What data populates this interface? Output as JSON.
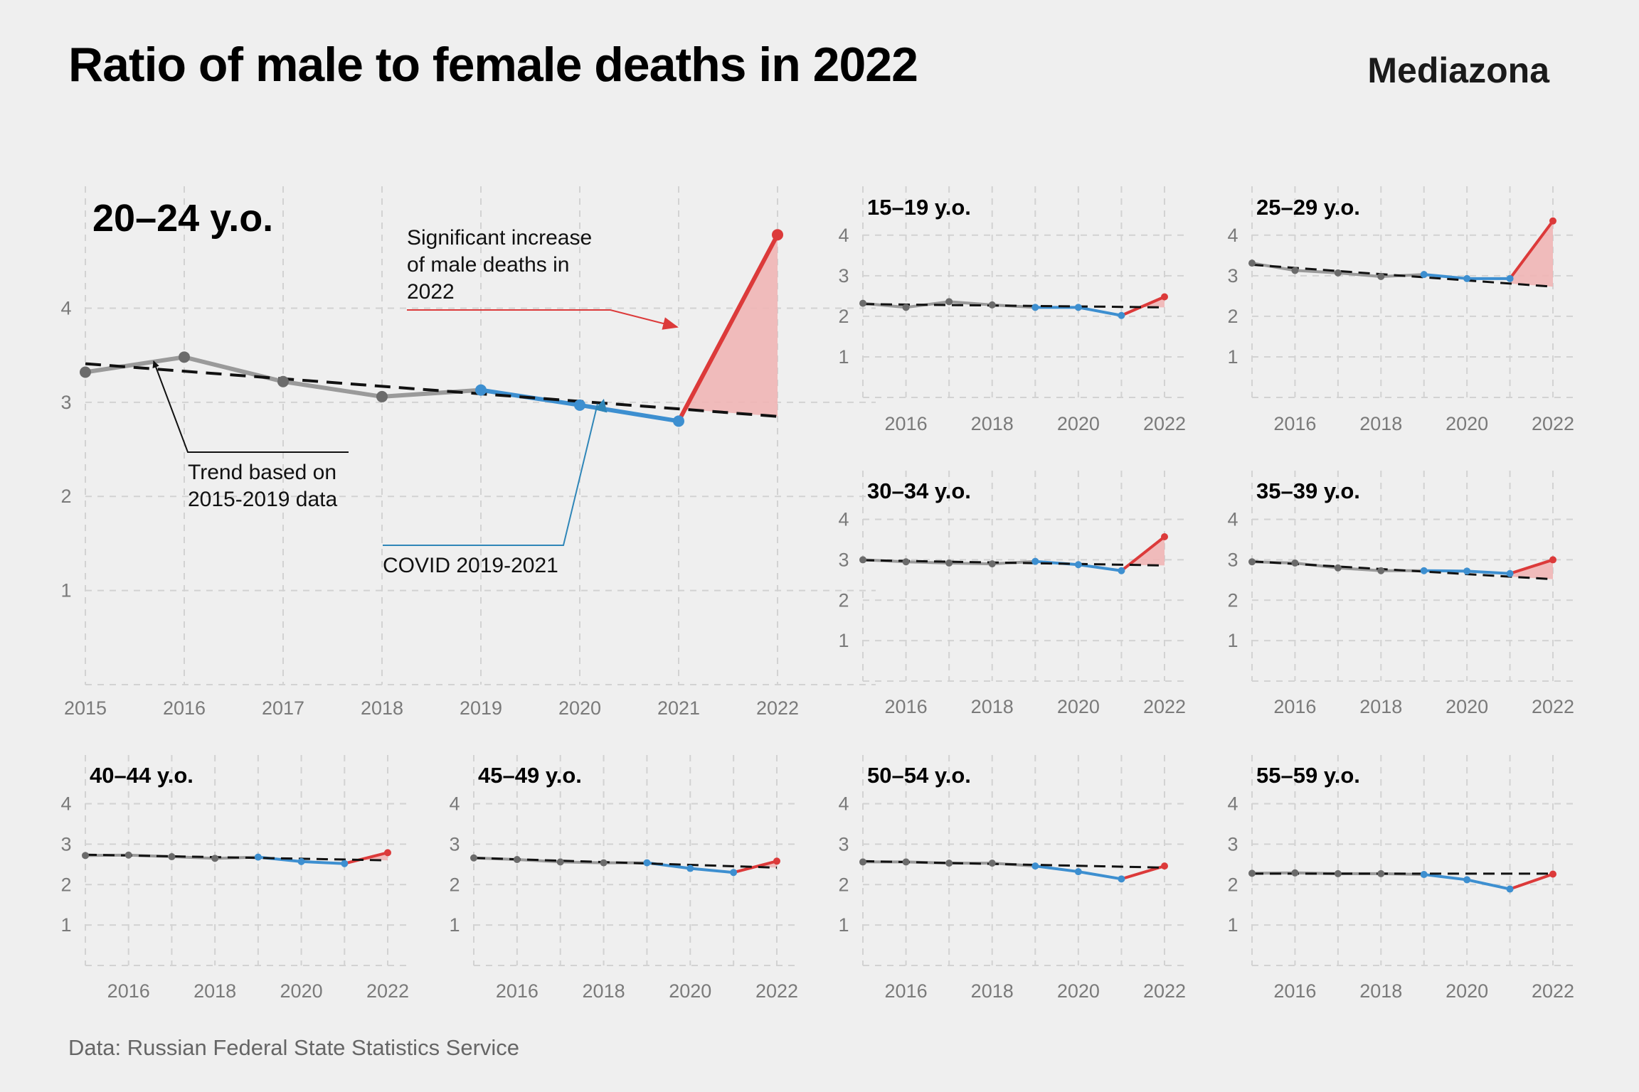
{
  "header": {
    "title": "Ratio of male to female deaths in 2022",
    "brand": "Mediazona"
  },
  "footer": {
    "source": "Data: Russian Federal State Statistics Service"
  },
  "colors": {
    "pre_covid": "#9a9a9a",
    "pre_covid_points": "#6b6b6b",
    "covid": "#3d8fd0",
    "year_2022": "#dc3a3a",
    "excess_fill": "#f0b5b5",
    "trend": "#111111"
  },
  "chart_data": [
    {
      "type": "line",
      "title": "20–24 y.o.",
      "x": [
        2015,
        2016,
        2017,
        2018,
        2019,
        2020,
        2021,
        2022
      ],
      "x_ticks": [
        "2015",
        "2016",
        "2017",
        "2018",
        "2019",
        "2020",
        "2021",
        "2022"
      ],
      "y_ticks": [
        "1",
        "2",
        "3",
        "4"
      ],
      "ylim": [
        0,
        5.25
      ],
      "values": [
        3.32,
        3.48,
        3.22,
        3.06,
        3.13,
        2.97,
        2.8,
        4.78
      ],
      "trend": [
        3.41,
        2.85
      ],
      "grid": true,
      "annotations": {
        "increase": [
          "Significant increase",
          "of male deaths in",
          "2022"
        ],
        "trend": [
          "Trend based on",
          "2015-2019 data"
        ],
        "covid": [
          "COVID 2019-2021"
        ]
      }
    },
    {
      "type": "line",
      "title": "15–19 y.o.",
      "x": [
        2015,
        2016,
        2017,
        2018,
        2019,
        2020,
        2021,
        2022
      ],
      "x_ticks": [
        "2016",
        "2018",
        "2020",
        "2022"
      ],
      "y_ticks": [
        "1",
        "2",
        "3",
        "4"
      ],
      "ylim": [
        0,
        5.1
      ],
      "values": [
        2.32,
        2.22,
        2.36,
        2.28,
        2.22,
        2.22,
        2.02,
        2.48
      ],
      "trend": [
        2.3,
        2.22
      ],
      "grid": true
    },
    {
      "type": "line",
      "title": "25–29 y.o.",
      "x": [
        2015,
        2016,
        2017,
        2018,
        2019,
        2020,
        2021,
        2022
      ],
      "x_ticks": [
        "2016",
        "2018",
        "2020",
        "2022"
      ],
      "y_ticks": [
        "1",
        "2",
        "3",
        "4"
      ],
      "ylim": [
        0,
        5.1
      ],
      "values": [
        3.31,
        3.13,
        3.07,
        2.98,
        3.03,
        2.93,
        2.93,
        4.35
      ],
      "trend": [
        3.27,
        2.73
      ],
      "grid": true
    },
    {
      "type": "line",
      "title": "30–34 y.o.",
      "x": [
        2015,
        2016,
        2017,
        2018,
        2019,
        2020,
        2021,
        2022
      ],
      "x_ticks": [
        "2016",
        "2018",
        "2020",
        "2022"
      ],
      "y_ticks": [
        "1",
        "2",
        "3",
        "4"
      ],
      "ylim": [
        0,
        5.1
      ],
      "values": [
        3.0,
        2.95,
        2.92,
        2.9,
        2.96,
        2.88,
        2.73,
        3.57
      ],
      "trend": [
        2.99,
        2.86
      ],
      "grid": true
    },
    {
      "type": "line",
      "title": "35–39 y.o.",
      "x": [
        2015,
        2016,
        2017,
        2018,
        2019,
        2020,
        2021,
        2022
      ],
      "x_ticks": [
        "2016",
        "2018",
        "2020",
        "2022"
      ],
      "y_ticks": [
        "1",
        "2",
        "3",
        "4"
      ],
      "ylim": [
        0,
        5.1
      ],
      "values": [
        2.95,
        2.92,
        2.8,
        2.73,
        2.73,
        2.72,
        2.66,
        3.0
      ],
      "trend": [
        2.96,
        2.52
      ],
      "grid": true
    },
    {
      "type": "line",
      "title": "40–44 y.o.",
      "x": [
        2015,
        2016,
        2017,
        2018,
        2019,
        2020,
        2021,
        2022
      ],
      "x_ticks": [
        "2016",
        "2018",
        "2020",
        "2022"
      ],
      "y_ticks": [
        "1",
        "2",
        "3",
        "4"
      ],
      "ylim": [
        0,
        5.1
      ],
      "values": [
        2.72,
        2.73,
        2.69,
        2.65,
        2.68,
        2.57,
        2.52,
        2.79
      ],
      "trend": [
        2.74,
        2.6
      ],
      "grid": true
    },
    {
      "type": "line",
      "title": "45–49 y.o.",
      "x": [
        2015,
        2016,
        2017,
        2018,
        2019,
        2020,
        2021,
        2022
      ],
      "x_ticks": [
        "2016",
        "2018",
        "2020",
        "2022"
      ],
      "y_ticks": [
        "1",
        "2",
        "3",
        "4"
      ],
      "ylim": [
        0,
        5.1
      ],
      "values": [
        2.66,
        2.62,
        2.56,
        2.54,
        2.54,
        2.4,
        2.3,
        2.58
      ],
      "trend": [
        2.66,
        2.42
      ],
      "grid": true
    },
    {
      "type": "line",
      "title": "50–54 y.o.",
      "x": [
        2015,
        2016,
        2017,
        2018,
        2019,
        2020,
        2021,
        2022
      ],
      "x_ticks": [
        "2016",
        "2018",
        "2020",
        "2022"
      ],
      "y_ticks": [
        "1",
        "2",
        "3",
        "4"
      ],
      "ylim": [
        0,
        5.1
      ],
      "values": [
        2.56,
        2.56,
        2.53,
        2.53,
        2.46,
        2.32,
        2.14,
        2.46
      ],
      "trend": [
        2.58,
        2.42
      ],
      "grid": true
    },
    {
      "type": "line",
      "title": "55–59 y.o.",
      "x": [
        2015,
        2016,
        2017,
        2018,
        2019,
        2020,
        2021,
        2022
      ],
      "x_ticks": [
        "2016",
        "2018",
        "2020",
        "2022"
      ],
      "y_ticks": [
        "1",
        "2",
        "3",
        "4"
      ],
      "ylim": [
        0,
        5.1
      ],
      "values": [
        2.28,
        2.29,
        2.27,
        2.27,
        2.25,
        2.12,
        1.89,
        2.26
      ],
      "trend": [
        2.27,
        2.27
      ],
      "grid": true
    }
  ]
}
